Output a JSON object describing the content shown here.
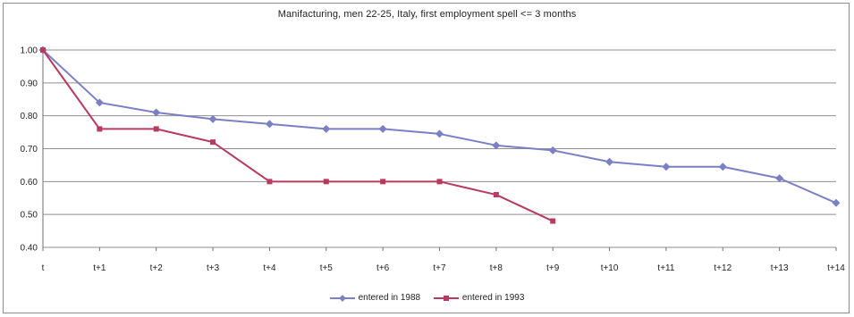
{
  "chart_data": {
    "type": "line",
    "title": "Manifacturing, men 22-25, Italy, first employment spell <= 3 months",
    "xlabel": "",
    "ylabel": "",
    "categories": [
      "t",
      "t+1",
      "t+2",
      "t+3",
      "t+4",
      "t+5",
      "t+6",
      "t+7",
      "t+8",
      "t+9",
      "t+10",
      "t+11",
      "t+12",
      "t+13",
      "t+14"
    ],
    "ylim": [
      0.4,
      1.0
    ],
    "yticks": [
      "0.40",
      "0.50",
      "0.60",
      "0.70",
      "0.80",
      "0.90",
      "1.00"
    ],
    "grid": true,
    "legend_position": "bottom",
    "series": [
      {
        "name": "entered in 1988",
        "color": "#7b7fc4",
        "marker": "diamond",
        "values": [
          1.0,
          0.84,
          0.81,
          0.79,
          0.775,
          0.76,
          0.76,
          0.745,
          0.71,
          0.695,
          0.66,
          0.645,
          0.645,
          0.61,
          0.535
        ]
      },
      {
        "name": "entered in 1993",
        "color": "#b83a5e",
        "marker": "square",
        "values": [
          1.0,
          0.76,
          0.76,
          0.72,
          0.6,
          0.6,
          0.6,
          0.6,
          0.56,
          0.48,
          null,
          null,
          null,
          null,
          null
        ]
      }
    ]
  }
}
